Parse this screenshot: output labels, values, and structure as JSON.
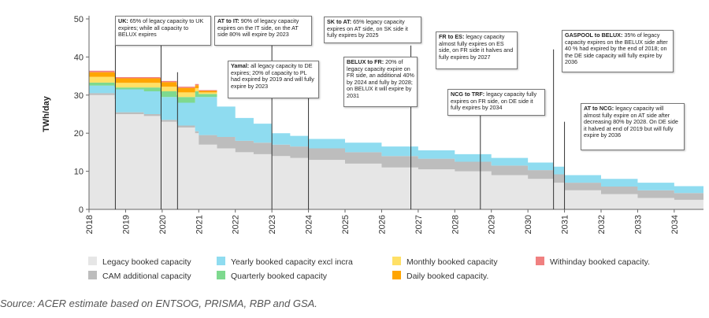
{
  "chart_data": {
    "type": "area",
    "ylabel": "TWh/day",
    "xlim": [
      2018,
      2034.8
    ],
    "ylim": [
      0,
      50
    ],
    "yticks": [
      "0",
      "10",
      "20",
      "30",
      "40",
      "50"
    ],
    "xticks": [
      "2018",
      "2019",
      "2020",
      "2021",
      "2022",
      "2023",
      "2024",
      "2025",
      "2026",
      "2027",
      "2028",
      "2029",
      "2030",
      "2031",
      "2032",
      "2033",
      "2034"
    ],
    "x": [
      2018.0,
      2018.7,
      2018.72,
      2019.5,
      2019.95,
      2019.97,
      2020.4,
      2020.42,
      2020.9,
      2021.0,
      2021.5,
      2022.0,
      2022.5,
      2023.0,
      2023.5,
      2024.0,
      2025.0,
      2026.0,
      2027.0,
      2028.0,
      2029.0,
      2030.0,
      2030.7,
      2031.0,
      2032.0,
      2033.0,
      2034.0,
      2034.8
    ],
    "series": [
      {
        "name": "Legacy booked capacity",
        "color": "#e6e6e6",
        "values": [
          30,
          29,
          25,
          24.5,
          23.8,
          23,
          22.5,
          21.5,
          20,
          17,
          16,
          15,
          14.5,
          14,
          13.5,
          13,
          12,
          11,
          10.5,
          10,
          9,
          8,
          7,
          5,
          4,
          3,
          2.5,
          2
        ]
      },
      {
        "name": "CAM additional capacity",
        "color": "#bdbdbd",
        "values": [
          0.5,
          0.5,
          0.5,
          0.5,
          0.5,
          0.5,
          0.5,
          0.5,
          0.5,
          2.5,
          3,
          3,
          3,
          3,
          3,
          3,
          3,
          3,
          2.8,
          2.5,
          2.5,
          2.3,
          2.2,
          2,
          2,
          2,
          1.8,
          1.5
        ]
      },
      {
        "name": "Yearly booked capacity excl incra",
        "color": "#8fdcf0",
        "values": [
          2,
          2.5,
          6,
          6,
          6,
          6,
          6,
          6,
          9,
          10,
          8,
          6,
          5,
          3,
          2.8,
          2.5,
          2.5,
          2.5,
          2.2,
          2,
          2,
          2,
          2,
          2,
          2,
          2,
          1.8,
          1.5
        ]
      },
      {
        "name": "Quarterly booked capacity",
        "color": "#7ed98f",
        "values": [
          0.8,
          0.8,
          0.5,
          1,
          1.5,
          1.5,
          1,
          1.5,
          1.5,
          0.8,
          0,
          0,
          0,
          0,
          0,
          0,
          0,
          0,
          0,
          0,
          0,
          0,
          0,
          0,
          0,
          0,
          0,
          0
        ]
      },
      {
        "name": "Monthly booked capacity",
        "color": "#ffe066",
        "values": [
          1.5,
          1.5,
          1.2,
          1.2,
          1.2,
          1.2,
          1.2,
          1.2,
          0.8,
          0.4,
          0,
          0,
          0,
          0,
          0,
          0,
          0,
          0,
          0,
          0,
          0,
          0,
          0,
          0,
          0,
          0,
          0,
          0
        ]
      },
      {
        "name": "Daily booked capacity",
        "color": "#ffa500",
        "values": [
          1.2,
          1.2,
          1.2,
          1.2,
          1.2,
          1.2,
          1.2,
          1.2,
          0.8,
          0.4,
          0,
          0,
          0,
          0,
          0,
          0,
          0,
          0,
          0,
          0,
          0,
          0,
          0,
          0,
          0,
          0,
          0,
          0
        ]
      },
      {
        "name": "Withinday booked capacity",
        "color": "#f08080",
        "values": [
          0.4,
          0.4,
          0.3,
          0.3,
          0.3,
          0.3,
          0.3,
          0.3,
          0.3,
          0.2,
          0,
          0,
          0,
          0,
          0,
          0,
          0,
          0,
          0,
          0,
          0,
          0,
          0,
          0,
          0,
          0,
          0,
          0
        ]
      }
    ],
    "legend": [
      {
        "label": "Legacy booked capacity",
        "color": "#e6e6e6"
      },
      {
        "label": "Yearly booked capacity excl incra",
        "color": "#8fdcf0"
      },
      {
        "label": "Monthly booked capacity",
        "color": "#ffe066"
      },
      {
        "label": "Withinday booked capacity.",
        "color": "#f08080"
      },
      {
        "label": "CAM additional capacity",
        "color": "#bdbdbd"
      },
      {
        "label": "Quarterly booked capacity",
        "color": "#7ed98f"
      },
      {
        "label": "Daily booked capacity.",
        "color": "#ffa500"
      }
    ],
    "annotations": [
      {
        "x": 2018.72,
        "y": 47,
        "title": "UK:",
        "text": " 65% of legacy capacity to UK expires; while all capacity to BELUX expires"
      },
      {
        "x": 2019.97,
        "y": 47,
        "title": "AT to IT:",
        "text": " 90% of legacy capacity expires on the IT side, on the AT side 80% will expire by 2023"
      },
      {
        "x": 2020.42,
        "y": 36,
        "title": "Yamal:",
        "text": " all legacy capacity to DE expires; 20% of capacity to PL had expired by 2019 and will fully expire by 2023"
      },
      {
        "x": 2023.0,
        "y": 45,
        "title": "SK to AT:",
        "text": " 65% legacy capacity expires on AT side, on SK side it fully expires by 2025"
      },
      {
        "x": 2024.0,
        "y": 36,
        "title": "BELUX to FR:",
        "text": " 20% of legacy capacity expire on FR side, an additional 40% by 2024 and fully by 2028; on BELUX it will expire by 2031"
      },
      {
        "x": 2026.8,
        "y": 43,
        "title": "FR to ES:",
        "text": " legacy capacity almost fully expires on ES side, on FR side it halves and fully expires by 2027"
      },
      {
        "x": 2028.7,
        "y": 31,
        "title": "NCG to TRF:",
        "text": " legacy capacity fully expires on FR side, on DE side it fully expires by 2034"
      },
      {
        "x": 2030.7,
        "y": 42,
        "title": "GASPOOL to BELUX:",
        "text": " 35% of legacy capacity expires on the BELUX side after 40 % had expired by the end of 2018; on the DE side capacity will fully expire by 2036"
      },
      {
        "x": 2031.0,
        "y": 23,
        "title": "AT to NCG:",
        "text": " legacy capacity will almost fully expire on AT side after decreasing 80% by 2028. On DE side it halved at end of 2019 but will fully expire by 2036"
      }
    ]
  },
  "source": "Source: ACER estimate based on ENTSOG, PRISMA, RBP and GSA."
}
